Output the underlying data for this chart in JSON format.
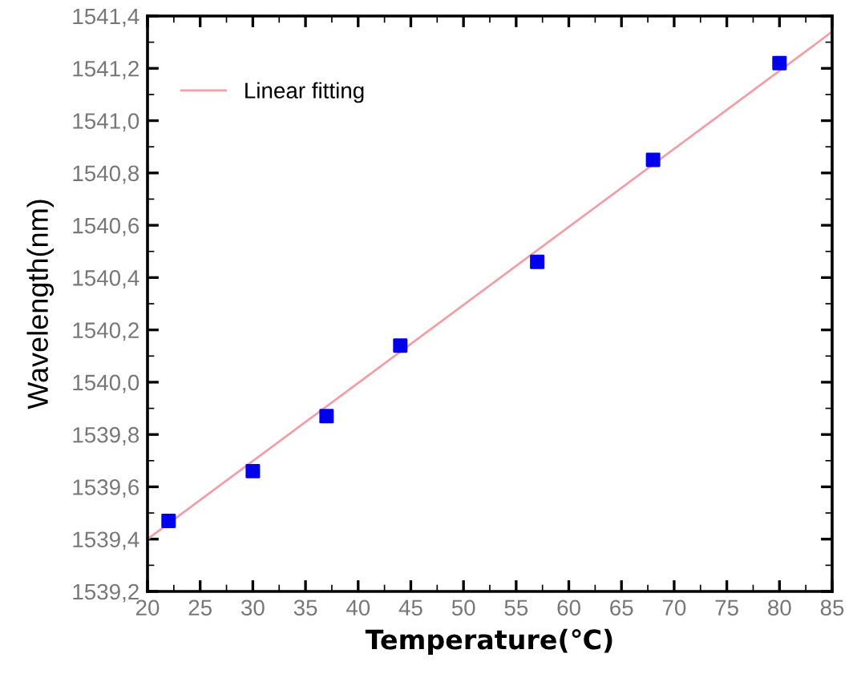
{
  "chart_data": {
    "type": "scatter",
    "xlabel": "Temperature(℃)",
    "ylabel": "Wavelength(nm)",
    "xlim": [
      20,
      85
    ],
    "xticks": [
      20,
      25,
      30,
      35,
      40,
      45,
      50,
      55,
      60,
      65,
      70,
      75,
      80,
      85
    ],
    "ylim": [
      1539.2,
      1541.4
    ],
    "yticks": [
      {
        "value": 1539.2,
        "label": "1539,2"
      },
      {
        "value": 1539.4,
        "label": "1539,4"
      },
      {
        "value": 1539.6,
        "label": "1539,6"
      },
      {
        "value": 1539.8,
        "label": "1539,8"
      },
      {
        "value": 1540.0,
        "label": "1540,0"
      },
      {
        "value": 1540.2,
        "label": "1540,2"
      },
      {
        "value": 1540.4,
        "label": "1540,4"
      },
      {
        "value": 1540.6,
        "label": "1540,6"
      },
      {
        "value": 1540.8,
        "label": "1540,8"
      },
      {
        "value": 1541.0,
        "label": "1541,0"
      },
      {
        "value": 1541.2,
        "label": "1541,2"
      },
      {
        "value": 1541.4,
        "label": "1541,4"
      }
    ],
    "grid": false,
    "legend": "top left",
    "series": [
      {
        "color": "#0000ee",
        "marker": "square",
        "x": [
          22,
          30,
          37,
          44,
          57,
          68,
          80
        ],
        "values": [
          1539.47,
          1539.66,
          1539.87,
          1540.14,
          1540.46,
          1540.85,
          1541.22
        ]
      },
      {
        "type": "line",
        "name": "Linear fitting",
        "color": "#f0a0a8",
        "line_style": "solid",
        "x": [
          20,
          85
        ],
        "values": [
          1539.4,
          1541.34
        ]
      }
    ]
  }
}
